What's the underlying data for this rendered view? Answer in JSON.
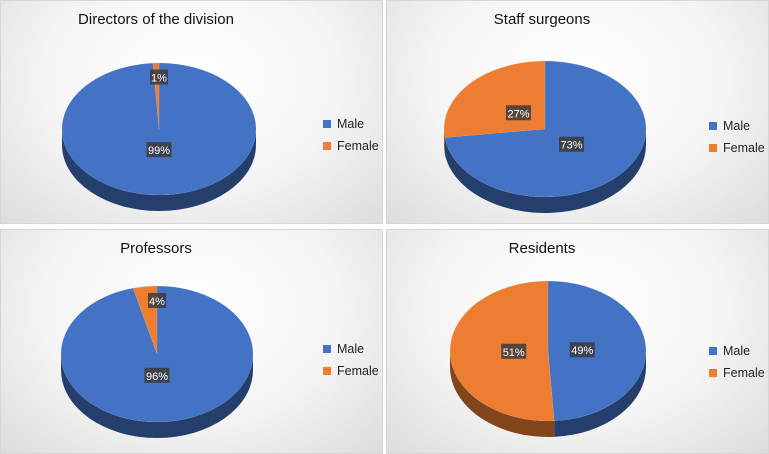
{
  "colors": {
    "male": "#4472C4",
    "female": "#ED7D31"
  },
  "legend_labels": [
    "Male",
    "Female"
  ],
  "chart_data": [
    {
      "type": "pie",
      "title": "Directors of the division",
      "categories": [
        "Male",
        "Female"
      ],
      "values": [
        99,
        1
      ],
      "data_labels": [
        "99%",
        "1%"
      ],
      "legend": "right"
    },
    {
      "type": "pie",
      "title": "Staff surgeons",
      "categories": [
        "Male",
        "Female"
      ],
      "values": [
        73,
        27
      ],
      "data_labels": [
        "73%",
        "27%"
      ],
      "legend": "right"
    },
    {
      "type": "pie",
      "title": "Professors",
      "categories": [
        "Male",
        "Female"
      ],
      "values": [
        96,
        4
      ],
      "data_labels": [
        "96%",
        "4%"
      ],
      "legend": "right"
    },
    {
      "type": "pie",
      "title": "Residents",
      "categories": [
        "Male",
        "Female"
      ],
      "values": [
        49,
        51
      ],
      "data_labels": [
        "49%",
        "51%"
      ],
      "legend": "right"
    }
  ]
}
